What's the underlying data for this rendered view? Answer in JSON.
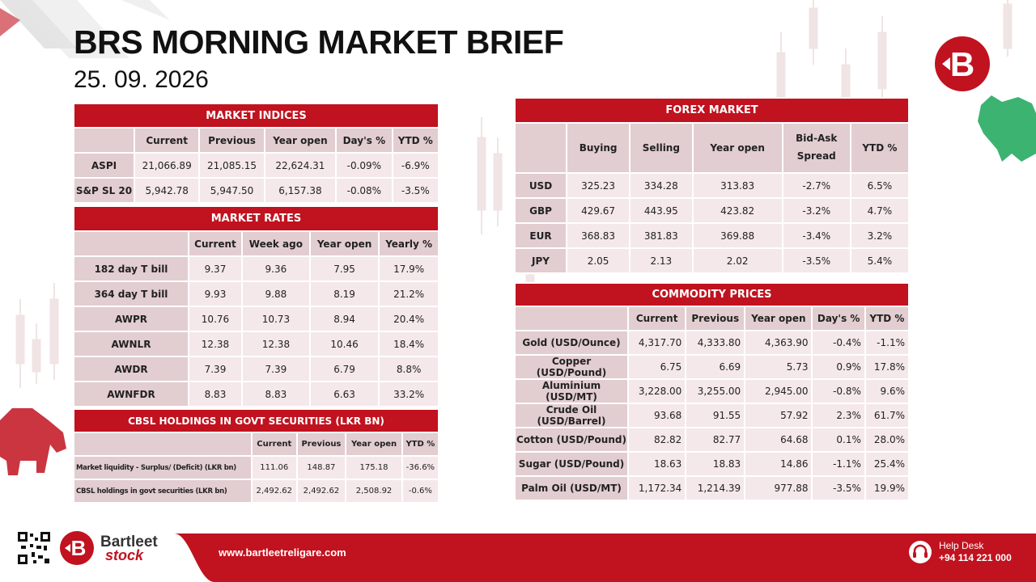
{
  "header": {
    "title": "BRS MORNING MARKET BRIEF",
    "date": "25. 09. 2026"
  },
  "indices": {
    "title": "MARKET INDICES",
    "columns": [
      "Current",
      "Previous",
      "Year open",
      "Day's %",
      "YTD %"
    ],
    "rows": [
      {
        "label": "ASPI",
        "values": [
          "21,066.89",
          "21,085.15",
          "22,624.31",
          "-0.09%",
          "-6.9%"
        ]
      },
      {
        "label": "S&P SL 20",
        "values": [
          "5,942.78",
          "5,947.50",
          "6,157.38",
          "-0.08%",
          "-3.5%"
        ]
      }
    ]
  },
  "rates": {
    "title": "MARKET RATES",
    "columns": [
      "Current",
      "Week ago",
      "Year open",
      "Yearly %"
    ],
    "rows": [
      {
        "label": "182 day T bill",
        "values": [
          "9.37",
          "9.36",
          "7.95",
          "17.9%"
        ]
      },
      {
        "label": "364 day T bill",
        "values": [
          "9.93",
          "9.88",
          "8.19",
          "21.2%"
        ]
      },
      {
        "label": "AWPR",
        "values": [
          "10.76",
          "10.73",
          "8.94",
          "20.4%"
        ]
      },
      {
        "label": "AWNLR",
        "values": [
          "12.38",
          "12.38",
          "10.46",
          "18.4%"
        ]
      },
      {
        "label": "AWDR",
        "values": [
          "7.39",
          "7.39",
          "6.79",
          "8.8%"
        ]
      },
      {
        "label": "AWNFDR",
        "values": [
          "8.83",
          "8.83",
          "6.63",
          "33.2%"
        ]
      }
    ]
  },
  "cbsl": {
    "title": "CBSL HOLDINGS IN GOVT SECURITIES (LKR BN)",
    "columns": [
      "Current",
      "Previous",
      "Year open",
      "YTD %"
    ],
    "rows": [
      {
        "label": "Market liquidity - Surplus/ (Deficit) (LKR bn)",
        "values": [
          "111.06",
          "148.87",
          "175.18",
          "-36.6%"
        ]
      },
      {
        "label": "CBSL holdings in govt securities (LKR bn)",
        "values": [
          "2,492.62",
          "2,492.62",
          "2,508.92",
          "-0.6%"
        ]
      }
    ]
  },
  "forex": {
    "title": "FOREX MARKET",
    "columns": [
      "Buying",
      "Selling",
      "Year open",
      "Bid-Ask Spread",
      "YTD %"
    ],
    "rows": [
      {
        "label": "USD",
        "values": [
          "325.23",
          "334.28",
          "313.83",
          "-2.7%",
          "6.5%"
        ]
      },
      {
        "label": "GBP",
        "values": [
          "429.67",
          "443.95",
          "423.82",
          "-3.2%",
          "4.7%"
        ]
      },
      {
        "label": "EUR",
        "values": [
          "368.83",
          "381.83",
          "369.88",
          "-3.4%",
          "3.2%"
        ]
      },
      {
        "label": "JPY",
        "values": [
          "2.05",
          "2.13",
          "2.02",
          "-3.5%",
          "5.4%"
        ]
      }
    ]
  },
  "commodities": {
    "title": "COMMODITY PRICES",
    "columns": [
      "Current",
      "Previous",
      "Year open",
      "Day's %",
      "YTD %"
    ],
    "rows": [
      {
        "label": "Gold (USD/Ounce)",
        "values": [
          "4,317.70",
          "4,333.80",
          "4,363.90",
          "-0.4%",
          "-1.1%"
        ]
      },
      {
        "label": "Copper (USD/Pound)",
        "values": [
          "6.75",
          "6.69",
          "5.73",
          "0.9%",
          "17.8%"
        ]
      },
      {
        "label": "Aluminium (USD/MT)",
        "values": [
          "3,228.00",
          "3,255.00",
          "2,945.00",
          "-0.8%",
          "9.6%"
        ]
      },
      {
        "label": "Crude Oil (USD/Barrel)",
        "values": [
          "93.68",
          "91.55",
          "57.92",
          "2.3%",
          "61.7%"
        ]
      },
      {
        "label": "Cotton (USD/Pound)",
        "values": [
          "82.82",
          "82.77",
          "64.68",
          "0.1%",
          "28.0%"
        ]
      },
      {
        "label": "Sugar (USD/Pound)",
        "values": [
          "18.63",
          "18.83",
          "14.86",
          "-1.1%",
          "25.4%"
        ]
      },
      {
        "label": "Palm Oil (USD/MT)",
        "values": [
          "1,172.34",
          "1,214.39",
          "977.88",
          "-3.5%",
          "19.9%"
        ]
      }
    ]
  },
  "footer": {
    "brand_top": "Bartleet",
    "brand_bottom": "stock",
    "website": "www.bartleetreligare.com",
    "help_label": "Help Desk",
    "help_phone": "+94 114 221 000"
  },
  "colors": {
    "accent": "#c1121f",
    "header_cell": "#e2cdd0",
    "value_cell": "#f4e8ea"
  },
  "icons": [
    "brand-logo-icon",
    "qr-code-icon",
    "headset-icon",
    "bull-icon",
    "bear-icon"
  ]
}
